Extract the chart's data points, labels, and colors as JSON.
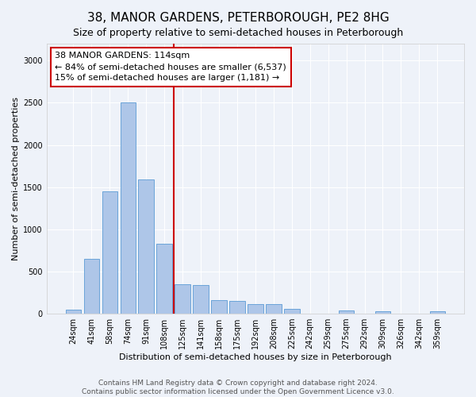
{
  "title": "38, MANOR GARDENS, PETERBOROUGH, PE2 8HG",
  "subtitle": "Size of property relative to semi-detached houses in Peterborough",
  "xlabel": "Distribution of semi-detached houses by size in Peterborough",
  "ylabel": "Number of semi-detached properties",
  "categories": [
    "24sqm",
    "41sqm",
    "58sqm",
    "74sqm",
    "91sqm",
    "108sqm",
    "125sqm",
    "141sqm",
    "158sqm",
    "175sqm",
    "192sqm",
    "208sqm",
    "225sqm",
    "242sqm",
    "259sqm",
    "275sqm",
    "292sqm",
    "309sqm",
    "326sqm",
    "342sqm",
    "359sqm"
  ],
  "values": [
    50,
    650,
    1450,
    2500,
    1590,
    830,
    350,
    340,
    165,
    155,
    110,
    110,
    55,
    0,
    0,
    35,
    0,
    30,
    0,
    0,
    25
  ],
  "bar_color": "#aec6e8",
  "bar_edge_color": "#5b9bd5",
  "vline_color": "#cc0000",
  "vline_x": 5.5,
  "annotation_text": "38 MANOR GARDENS: 114sqm\n← 84% of semi-detached houses are smaller (6,537)\n15% of semi-detached houses are larger (1,181) →",
  "annotation_box_color": "#ffffff",
  "annotation_box_edge_color": "#cc0000",
  "ylim": [
    0,
    3200
  ],
  "yticks": [
    0,
    500,
    1000,
    1500,
    2000,
    2500,
    3000
  ],
  "footer": "Contains HM Land Registry data © Crown copyright and database right 2024.\nContains public sector information licensed under the Open Government Licence v3.0.",
  "bg_color": "#eef2f9",
  "grid_color": "#ffffff",
  "title_fontsize": 11,
  "subtitle_fontsize": 9,
  "axis_label_fontsize": 8,
  "tick_fontsize": 7,
  "annotation_fontsize": 8,
  "footer_fontsize": 6.5
}
